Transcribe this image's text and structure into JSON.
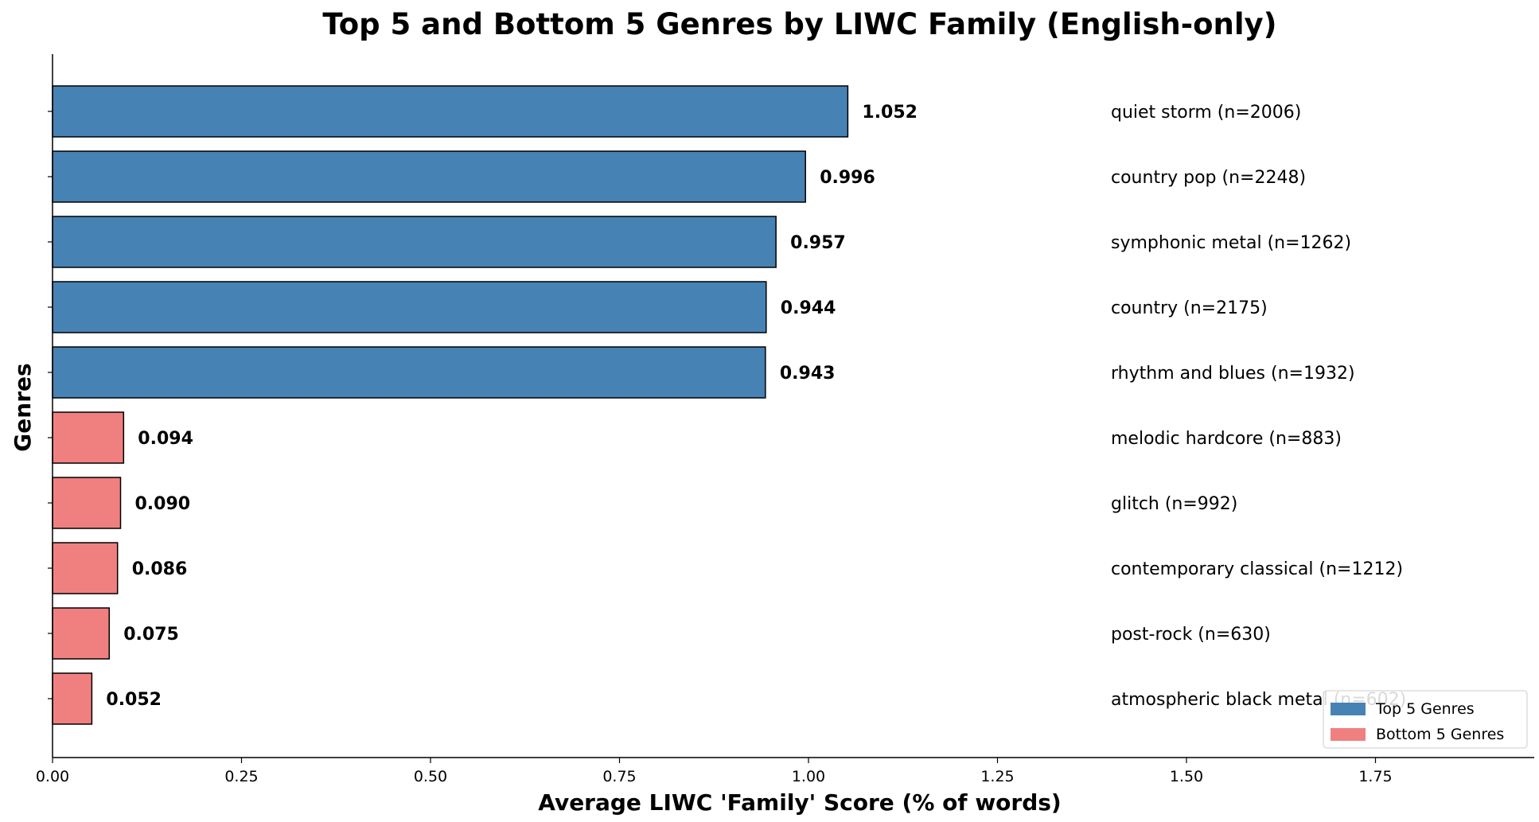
{
  "chart_data": {
    "type": "bar",
    "orientation": "horizontal",
    "title": "Top 5 and Bottom 5 Genres by LIWC Family (English-only)",
    "xlabel": "Average LIWC 'Family' Score (% of words)",
    "ylabel": "Genres",
    "xlim": [
      0,
      1.96
    ],
    "xticks": [
      0.0,
      0.25,
      0.5,
      0.75,
      1.0,
      1.25,
      1.5,
      1.75
    ],
    "xtick_labels": [
      "0.00",
      "0.25",
      "0.50",
      "0.75",
      "1.00",
      "1.25",
      "1.50",
      "1.75"
    ],
    "grid": false,
    "legend_position": "bottom-right",
    "colors": {
      "top": "#4682b4",
      "bottom": "#f08080",
      "edge": "#000000"
    },
    "legend": [
      {
        "group": "top",
        "label": "Top 5 Genres"
      },
      {
        "group": "bottom",
        "label": "Bottom 5 Genres"
      }
    ],
    "bars": [
      {
        "label": "quiet storm (n=2006)",
        "value": 1.052,
        "value_label": "1.052",
        "group": "top"
      },
      {
        "label": "country pop (n=2248)",
        "value": 0.996,
        "value_label": "0.996",
        "group": "top"
      },
      {
        "label": "symphonic metal (n=1262)",
        "value": 0.957,
        "value_label": "0.957",
        "group": "top"
      },
      {
        "label": "country (n=2175)",
        "value": 0.944,
        "value_label": "0.944",
        "group": "top"
      },
      {
        "label": "rhythm and blues (n=1932)",
        "value": 0.943,
        "value_label": "0.943",
        "group": "top"
      },
      {
        "label": "melodic hardcore (n=883)",
        "value": 0.094,
        "value_label": "0.094",
        "group": "bottom"
      },
      {
        "label": "glitch (n=992)",
        "value": 0.09,
        "value_label": "0.090",
        "group": "bottom"
      },
      {
        "label": "contemporary classical (n=1212)",
        "value": 0.086,
        "value_label": "0.086",
        "group": "bottom"
      },
      {
        "label": "post-rock (n=630)",
        "value": 0.075,
        "value_label": "0.075",
        "group": "bottom"
      },
      {
        "label": "atmospheric black metal (n=602)",
        "value": 0.052,
        "value_label": "0.052",
        "group": "bottom"
      }
    ]
  }
}
